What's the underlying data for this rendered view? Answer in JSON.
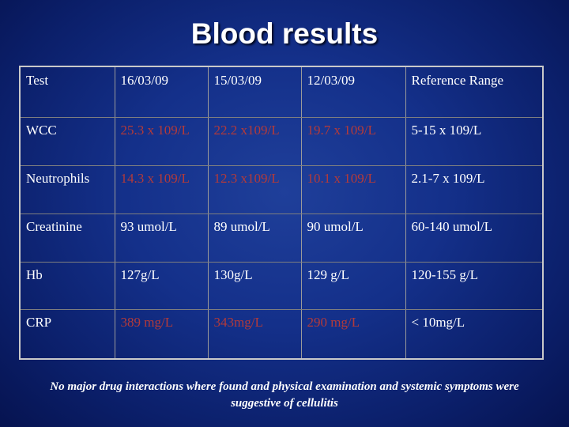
{
  "title": "Blood results",
  "table": {
    "headers": [
      "Test",
      "16/03/09",
      "15/03/09",
      "12/03/09",
      "Reference Range"
    ],
    "rows": [
      [
        "WCC",
        "25.3 x 109/L",
        "22.2 x109/L",
        "19.7 x 109/L",
        "5-15 x 109/L"
      ],
      [
        "Neutrophils",
        "14.3 x 109/L",
        "12.3 x109/L",
        "10.1 x 109/L",
        "2.1-7 x 109/L"
      ],
      [
        "Creatinine",
        "93 umol/L",
        "89 umol/L",
        "90 umol/L",
        "60-140 umol/L"
      ],
      [
        "Hb",
        "127g/L",
        "130g/L",
        "129 g/L",
        "120-155 g/L"
      ],
      [
        "CRP",
        "389 mg/L",
        "343mg/L",
        "290 mg/L",
        "< 10mg/L"
      ]
    ]
  },
  "footnote": "No major  drug interactions where found and physical examination and systemic symptoms were suggestive of cellulitis",
  "colors": {
    "background": "#14308a",
    "text": "#ffffff",
    "abnormal_value": "#b33a3a",
    "grid": "#7f7f7f"
  }
}
